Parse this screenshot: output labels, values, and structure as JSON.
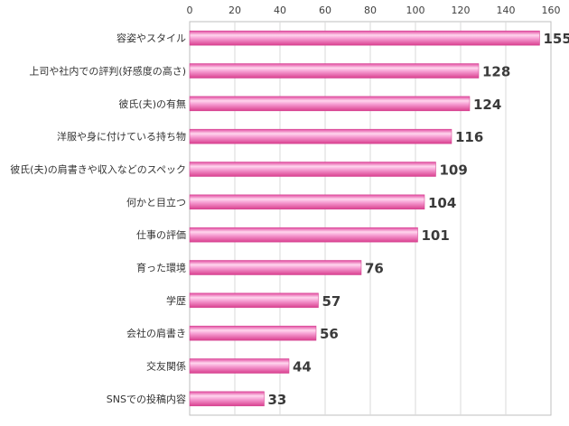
{
  "chart_data": {
    "type": "bar",
    "orientation": "horizontal",
    "categories": [
      "容姿やスタイル",
      "上司や社内での評判(好感度の高さ)",
      "彼氏(夫)の有無",
      "洋服や身に付けている持ち物",
      "彼氏(夫)の肩書きや収入などのスペック",
      "何かと目立つ",
      "仕事の評価",
      "育った環境",
      "学歴",
      "会社の肩書き",
      "交友関係",
      "SNSでの投稿内容"
    ],
    "values": [
      155,
      128,
      124,
      116,
      109,
      104,
      101,
      76,
      57,
      56,
      44,
      33
    ],
    "xlim": [
      0,
      160
    ],
    "x_ticks": [
      "0",
      "20",
      "40",
      "60",
      "80",
      "100",
      "120",
      "140",
      "160"
    ],
    "axis_position": "top",
    "grid": true,
    "bar_color": "#f06cb6",
    "bar_highlight": "#ffd6ee",
    "title": "",
    "xlabel": "",
    "ylabel": ""
  }
}
